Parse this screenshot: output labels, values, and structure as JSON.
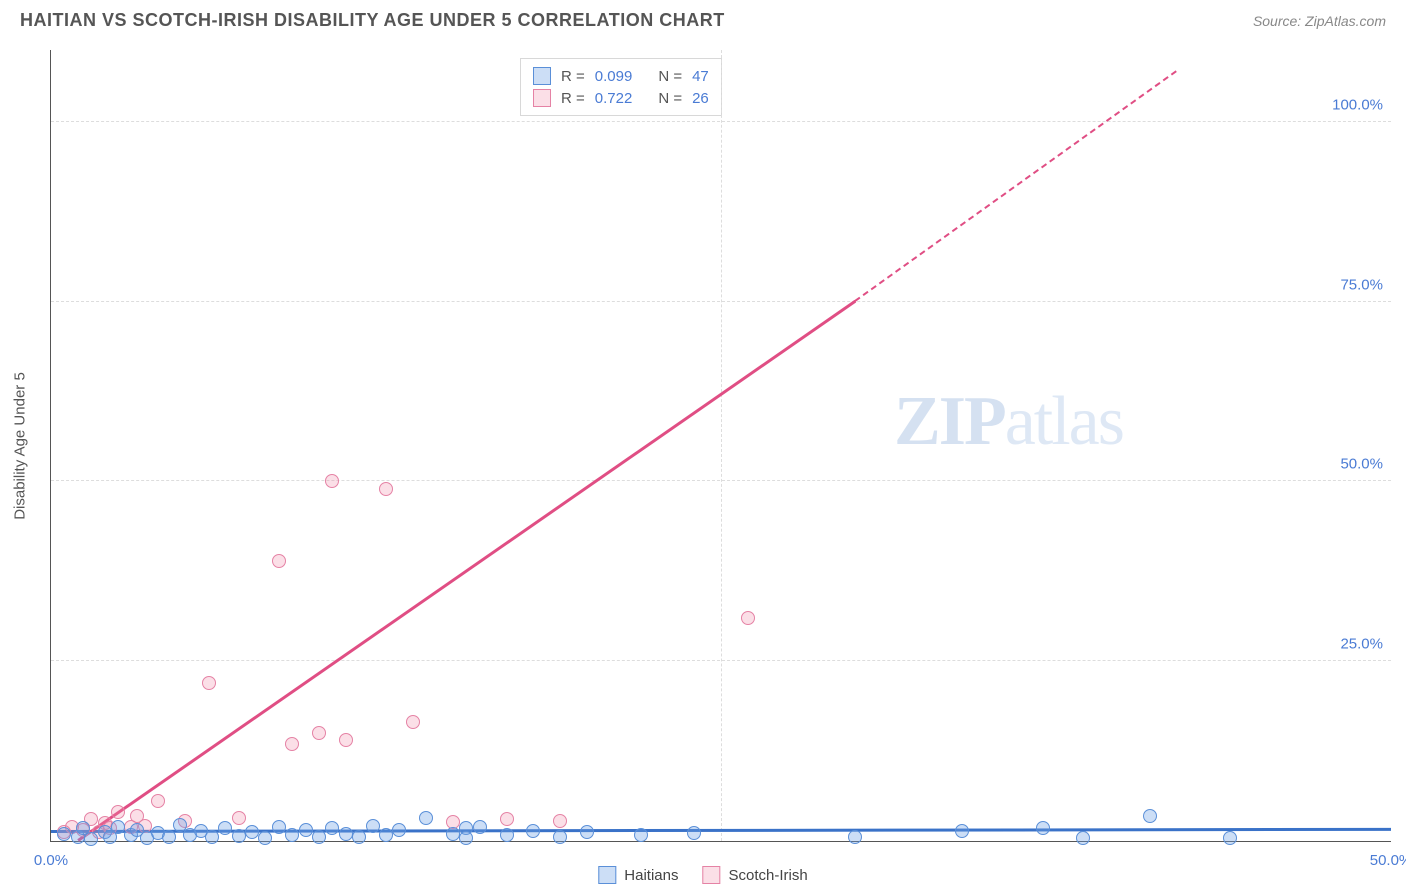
{
  "title": "HAITIAN VS SCOTCH-IRISH DISABILITY AGE UNDER 5 CORRELATION CHART",
  "source": "Source: ZipAtlas.com",
  "watermark": {
    "bold": "ZIP",
    "thin": "atlas"
  },
  "ylabel": "Disability Age Under 5",
  "chart": {
    "type": "scatter",
    "xlim": [
      0,
      50
    ],
    "ylim": [
      0,
      110
    ],
    "xticks": [
      {
        "value": 0,
        "label": "0.0%"
      },
      {
        "value": 50,
        "label": "50.0%"
      }
    ],
    "yticks": [
      {
        "value": 25,
        "label": "25.0%"
      },
      {
        "value": 50,
        "label": "50.0%"
      },
      {
        "value": 75,
        "label": "75.0%"
      },
      {
        "value": 100,
        "label": "100.0%"
      }
    ],
    "grid_vertical_at": [
      25
    ],
    "background": "#ffffff",
    "grid_color": "#dddddd",
    "axis_color": "#555555"
  },
  "series": {
    "haitians": {
      "label": "Haitians",
      "fill": "rgba(110,160,230,0.35)",
      "stroke": "#5a8fd8",
      "line_color": "#3a72c8",
      "R": "0.099",
      "N": "47",
      "trend": {
        "x1": 0,
        "y1": 1.2,
        "x2": 50,
        "y2": 1.5,
        "dashed": false
      },
      "points": [
        [
          0.5,
          1
        ],
        [
          1,
          0.5
        ],
        [
          1.2,
          1.8
        ],
        [
          1.5,
          0.3
        ],
        [
          2,
          1.2
        ],
        [
          2.2,
          0.6
        ],
        [
          2.5,
          2
        ],
        [
          3,
          0.8
        ],
        [
          3.2,
          1.5
        ],
        [
          3.6,
          0.4
        ],
        [
          4,
          1.1
        ],
        [
          4.4,
          0.6
        ],
        [
          4.8,
          2.2
        ],
        [
          5.2,
          0.8
        ],
        [
          5.6,
          1.4
        ],
        [
          6,
          0.5
        ],
        [
          6.5,
          1.8
        ],
        [
          7,
          0.7
        ],
        [
          7.5,
          1.2
        ],
        [
          8,
          0.4
        ],
        [
          8.5,
          2
        ],
        [
          9,
          0.8
        ],
        [
          9.5,
          1.5
        ],
        [
          10,
          0.5
        ],
        [
          10.5,
          1.8
        ],
        [
          11,
          1
        ],
        [
          11.5,
          0.6
        ],
        [
          12,
          2.1
        ],
        [
          12.5,
          0.9
        ],
        [
          13,
          1.6
        ],
        [
          14,
          3.2
        ],
        [
          15,
          1
        ],
        [
          15.5,
          1.8
        ],
        [
          15.5,
          0.4
        ],
        [
          16,
          2
        ],
        [
          17,
          0.8
        ],
        [
          18,
          1.4
        ],
        [
          19,
          0.5
        ],
        [
          20,
          1.2
        ],
        [
          22,
          0.8
        ],
        [
          24,
          1.1
        ],
        [
          30,
          0.6
        ],
        [
          34,
          1.4
        ],
        [
          37,
          1.8
        ],
        [
          38.5,
          0.4
        ],
        [
          41,
          3.5
        ],
        [
          44,
          0.4
        ]
      ]
    },
    "scotch_irish": {
      "label": "Scotch-Irish",
      "fill": "rgba(240,140,170,0.28)",
      "stroke": "#e582a5",
      "line_color": "#e04e84",
      "R": "0.722",
      "N": "26",
      "trend": {
        "x1": 1,
        "y1": 0,
        "x2": 30,
        "y2": 75,
        "dashed_after_x": 30,
        "dashed_end_x": 42,
        "dashed_end_y": 107
      },
      "points": [
        [
          0.5,
          1.2
        ],
        [
          0.8,
          2
        ],
        [
          1.2,
          1.5
        ],
        [
          1.5,
          3
        ],
        [
          1.8,
          1.2
        ],
        [
          2,
          2.5
        ],
        [
          2.2,
          1.8
        ],
        [
          2.5,
          4
        ],
        [
          3,
          2
        ],
        [
          3.2,
          3.5
        ],
        [
          3.5,
          2.1
        ],
        [
          4,
          5.5
        ],
        [
          5,
          2.8
        ],
        [
          5.9,
          22
        ],
        [
          7,
          3.2
        ],
        [
          8.5,
          39
        ],
        [
          9,
          13.5
        ],
        [
          10.5,
          50
        ],
        [
          10,
          15
        ],
        [
          11,
          14
        ],
        [
          12.5,
          49
        ],
        [
          13.5,
          16.5
        ],
        [
          15,
          2.6
        ],
        [
          17,
          3
        ],
        [
          19,
          2.8
        ],
        [
          26,
          31
        ]
      ]
    }
  },
  "legend_top": {
    "rows": [
      {
        "series": "haitians",
        "R_label": "R =",
        "N_label": "N ="
      },
      {
        "series": "scotch_irish",
        "R_label": "R =",
        "N_label": "N ="
      }
    ]
  },
  "legend_bottom": [
    {
      "series": "haitians"
    },
    {
      "series": "scotch_irish"
    }
  ]
}
